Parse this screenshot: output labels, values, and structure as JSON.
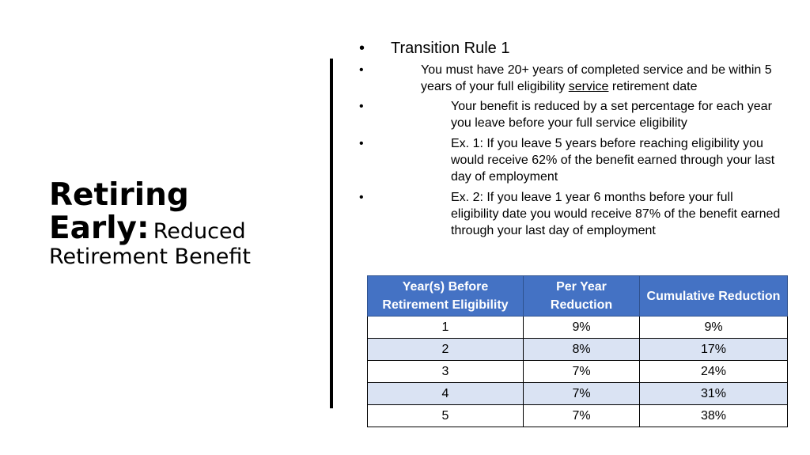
{
  "title": {
    "bold": "Retiring Early:",
    "light": "Reduced Retirement Benefit"
  },
  "bullets": {
    "l1": "Transition Rule 1",
    "l2_a": "You must have 20+ years of completed service and be within 5 years of your full eligibility ",
    "l2_link": "service",
    "l2_b": " retirement date",
    "l3": [
      "Your benefit is reduced by a set percentage for each year you leave before your full service eligibility",
      "Ex. 1: If you leave 5 years before reaching eligibility you would receive 62% of the benefit earned through your last day of employment",
      "Ex. 2: If you leave 1 year 6 months before your full eligibility date you would receive 87% of the benefit earned through your last day of employment"
    ]
  },
  "table": {
    "headers": [
      "Year(s) Before Retirement Eligibility",
      "Per Year Reduction",
      "Cumulative Reduction"
    ],
    "rows": [
      [
        "1",
        "9%",
        "9%"
      ],
      [
        "2",
        "8%",
        "17%"
      ],
      [
        "3",
        "7%",
        "24%"
      ],
      [
        "4",
        "7%",
        "31%"
      ],
      [
        "5",
        "7%",
        "38%"
      ]
    ]
  }
}
